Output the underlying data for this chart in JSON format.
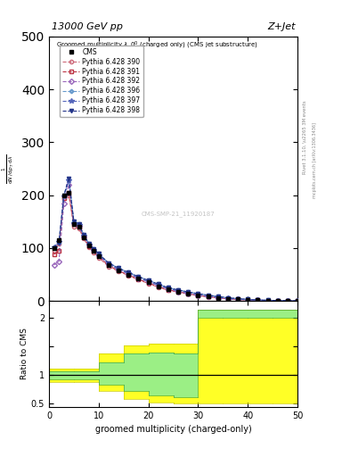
{
  "title_left": "13000 GeV pp",
  "title_right": "Z+Jet",
  "annotation": "Groomed multiplicity $\\lambda$_0$^0$ (charged only) (CMS jet substructure)",
  "xlabel": "groomed multiplicity (charged-only)",
  "ylabel_main": "$\\frac{1}{\\mathrm{d}N}\\,/\\,\\mathrm{d}p_T\\,\\mathrm{d}\\,\\mathrm{d}\\lambda$",
  "ylabel_ratio": "Ratio to CMS",
  "right_label1": "mcplots.cern.ch [arXiv:1306.3436]",
  "right_label2": "Rivet 3.1.10, \\u2265 3M events",
  "watermark": "CMS-SMP-21_11920187",
  "ylim_main": [
    0,
    500
  ],
  "ylim_ratio": [
    0.45,
    2.3
  ],
  "x_values": [
    1,
    2,
    3,
    4,
    5,
    6,
    7,
    8,
    9,
    10,
    12,
    14,
    16,
    18,
    20,
    22,
    24,
    26,
    28,
    30,
    32,
    34,
    36,
    38,
    40,
    42,
    44,
    46,
    48,
    50
  ],
  "cms_data": [
    100,
    115,
    200,
    205,
    145,
    140,
    120,
    105,
    95,
    85,
    68,
    58,
    50,
    42,
    35,
    28,
    22,
    18,
    14,
    11,
    8,
    6,
    4,
    3,
    2,
    1.5,
    1,
    0.7,
    0.4,
    0.2
  ],
  "pythia_390": [
    95,
    108,
    195,
    200,
    140,
    137,
    118,
    102,
    92,
    82,
    65,
    56,
    48,
    40,
    33,
    26,
    20,
    17,
    13,
    10,
    7.5,
    5.5,
    3.8,
    2.8,
    1.8,
    1.3,
    0.9,
    0.6,
    0.3,
    0.15
  ],
  "pythia_391": [
    88,
    95,
    195,
    205,
    145,
    140,
    120,
    104,
    94,
    84,
    67,
    57,
    49,
    41,
    34,
    27,
    21,
    17.5,
    13.5,
    10.5,
    8,
    6,
    4,
    3,
    2,
    1.4,
    1,
    0.65,
    0.35,
    0.18
  ],
  "pythia_392": [
    68,
    75,
    185,
    220,
    148,
    142,
    122,
    106,
    96,
    86,
    69,
    59,
    51,
    43,
    36,
    29,
    22,
    18,
    14,
    11,
    8,
    6,
    4,
    3,
    2,
    1.5,
    1,
    0.7,
    0.4,
    0.2
  ],
  "pythia_396": [
    100,
    110,
    200,
    230,
    150,
    145,
    125,
    109,
    99,
    89,
    72,
    62,
    54,
    46,
    39,
    32,
    25,
    21,
    17,
    14,
    11,
    8.5,
    6,
    4.5,
    3,
    2,
    1.3,
    0.9,
    0.5,
    0.25
  ],
  "pythia_397": [
    102,
    112,
    198,
    228,
    148,
    143,
    123,
    107,
    97,
    87,
    70,
    60,
    52,
    44,
    37,
    30,
    23.5,
    19.5,
    15.5,
    12.5,
    9.5,
    7,
    4.8,
    3.5,
    2.3,
    1.6,
    1.05,
    0.72,
    0.42,
    0.22
  ],
  "pythia_398": [
    100,
    110,
    200,
    232,
    150,
    145,
    125,
    109,
    99,
    89,
    72,
    62,
    54,
    46,
    39,
    32,
    25,
    21,
    17,
    14,
    11,
    8.5,
    6,
    4.5,
    3,
    2,
    1.3,
    0.9,
    0.5,
    0.25
  ],
  "ratio_x_edges": [
    0,
    5,
    10,
    15,
    20,
    25,
    30,
    35,
    40,
    45,
    50
  ],
  "ratio_yellow_lo": [
    0.88,
    0.88,
    0.72,
    0.58,
    0.52,
    0.5,
    0.5,
    0.5,
    0.5,
    0.5
  ],
  "ratio_yellow_hi": [
    1.12,
    1.12,
    1.38,
    1.52,
    1.55,
    1.55,
    2.15,
    2.15,
    2.15,
    2.15
  ],
  "ratio_green_lo": [
    0.93,
    0.93,
    0.83,
    0.72,
    0.65,
    0.62,
    2.0,
    2.0,
    2.0,
    2.0
  ],
  "ratio_green_hi": [
    1.07,
    1.07,
    1.22,
    1.38,
    1.4,
    1.38,
    2.15,
    2.15,
    2.15,
    2.15
  ],
  "color_390": "#cc6677",
  "color_391": "#bb3344",
  "color_392": "#9966bb",
  "color_396": "#6699cc",
  "color_397": "#5566bb",
  "color_398": "#223388",
  "marker_390": "o",
  "marker_391": "s",
  "marker_392": "D",
  "marker_396": "P",
  "marker_397": "*",
  "marker_398": "v",
  "background_color": "#ffffff"
}
